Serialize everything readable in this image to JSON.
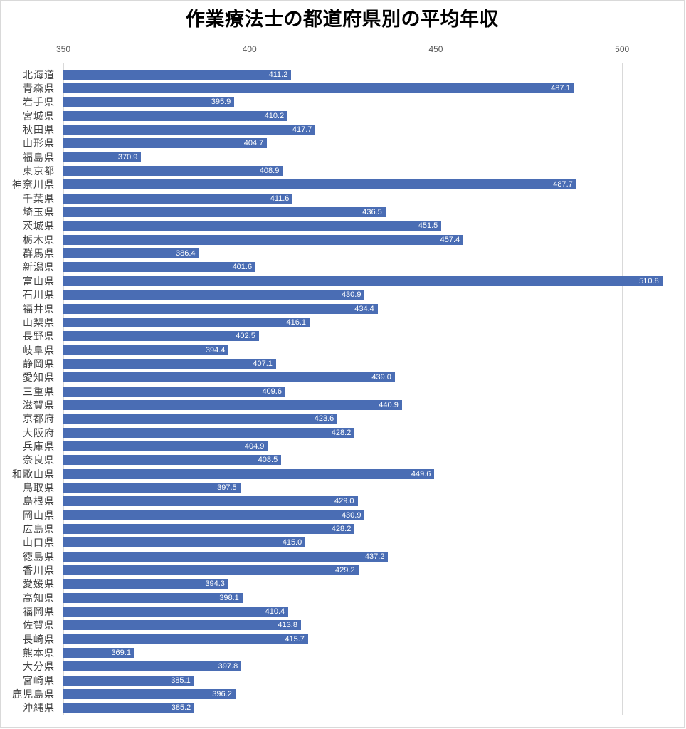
{
  "title": "作業療法士の都道府県別の平均年収",
  "colors": {
    "bar": "#4a6db4",
    "gridline": "#d9d9d9",
    "frame_border": "#d9d9d9",
    "title_text": "#000000",
    "tick_text": "#595959",
    "category_text": "#404040",
    "value_text": "#ffffff",
    "background": "#ffffff"
  },
  "chart_data": {
    "type": "bar",
    "orientation": "horizontal",
    "title": "作業療法士の都道府県別の平均年収",
    "xlabel": "",
    "ylabel": "",
    "xlim": [
      350,
      512
    ],
    "x_ticks": [
      350,
      400,
      450,
      500
    ],
    "grid": true,
    "value_label_position": "inside-end",
    "value_label_decimals": 1,
    "categories": [
      "北海道",
      "青森県",
      "岩手県",
      "宮城県",
      "秋田県",
      "山形県",
      "福島県",
      "東京都",
      "神奈川県",
      "千葉県",
      "埼玉県",
      "茨城県",
      "栃木県",
      "群馬県",
      "新潟県",
      "富山県",
      "石川県",
      "福井県",
      "山梨県",
      "長野県",
      "岐阜県",
      "静岡県",
      "愛知県",
      "三重県",
      "滋賀県",
      "京都府",
      "大阪府",
      "兵庫県",
      "奈良県",
      "和歌山県",
      "鳥取県",
      "島根県",
      "岡山県",
      "広島県",
      "山口県",
      "徳島県",
      "香川県",
      "愛媛県",
      "高知県",
      "福岡県",
      "佐賀県",
      "長崎県",
      "熊本県",
      "大分県",
      "宮崎県",
      "鹿児島県",
      "沖縄県"
    ],
    "values": [
      411.2,
      487.1,
      395.9,
      410.2,
      417.7,
      404.7,
      370.9,
      408.9,
      487.7,
      411.6,
      436.5,
      451.5,
      457.4,
      386.4,
      401.6,
      510.8,
      430.9,
      434.4,
      416.1,
      402.5,
      394.4,
      407.1,
      439.0,
      409.6,
      440.9,
      423.6,
      428.2,
      404.9,
      408.5,
      449.6,
      397.5,
      429.0,
      430.9,
      428.2,
      415.0,
      437.2,
      429.2,
      394.3,
      398.1,
      410.4,
      413.8,
      415.7,
      369.1,
      397.8,
      385.1,
      396.2,
      385.2
    ]
  }
}
